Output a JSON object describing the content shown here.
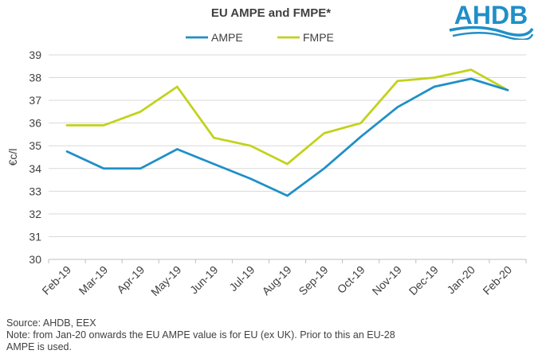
{
  "chart_data": {
    "type": "line",
    "title": "EU AMPE and FMPE*",
    "xlabel": "",
    "ylabel": "€c/l",
    "ylim": [
      30,
      39
    ],
    "yticks": [
      30,
      31,
      32,
      33,
      34,
      35,
      36,
      37,
      38,
      39
    ],
    "grid": true,
    "legend_position": "top",
    "categories": [
      "Feb-19",
      "Mar-19",
      "Apr-19",
      "May-19",
      "Jun-19",
      "Jul-19",
      "Aug-19",
      "Sep-19",
      "Oct-19",
      "Nov-19",
      "Dec-19",
      "Jan-20",
      "Feb-20"
    ],
    "series": [
      {
        "name": "AMPE",
        "color": "#1f8fc8",
        "values": [
          34.75,
          34.0,
          34.0,
          34.85,
          34.2,
          33.55,
          32.8,
          34.0,
          35.4,
          36.7,
          37.6,
          37.95,
          37.45
        ]
      },
      {
        "name": "FMPE",
        "color": "#c2d21a",
        "values": [
          35.9,
          35.9,
          36.5,
          37.6,
          35.35,
          35.0,
          34.2,
          35.55,
          36.0,
          37.85,
          38.0,
          38.35,
          37.45
        ]
      }
    ]
  },
  "footnote": {
    "source": "Source: AHDB, EEX",
    "note_line1": "Note: from Jan-20 onwards the EU AMPE value is for EU (ex UK). Prior to this an EU-28",
    "note_line2": "AMPE is used."
  },
  "logo": {
    "text": "AHDB",
    "color": "#1f8fc8"
  }
}
